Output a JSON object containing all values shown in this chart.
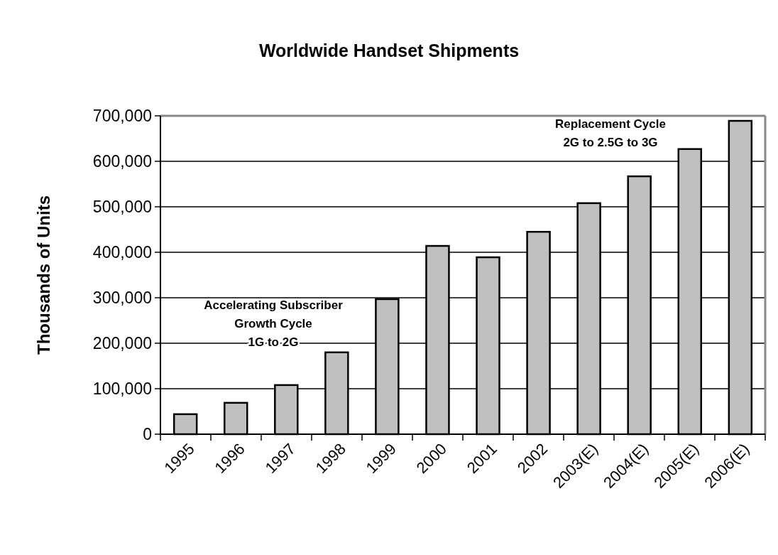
{
  "chart_data": {
    "type": "bar",
    "title": "Worldwide Handset Shipments",
    "ylabel": "Thousands of Units",
    "categories": [
      "1995",
      "1996",
      "1997",
      "1998",
      "1999",
      "2000",
      "2001",
      "2002",
      "2003(E)",
      "2004(E)",
      "2005(E)",
      "2006(E)"
    ],
    "values": [
      44000,
      69000,
      108000,
      180000,
      297000,
      414000,
      389000,
      445000,
      508000,
      567000,
      627000,
      689000
    ],
    "color": "#c0c0c0",
    "ylim": [
      0,
      700000
    ],
    "yticks": [
      {
        "value": 0,
        "label": "0"
      },
      {
        "value": 100000,
        "label": "100,000"
      },
      {
        "value": 200000,
        "label": "200,000"
      },
      {
        "value": 300000,
        "label": "300,000"
      },
      {
        "value": 400000,
        "label": "400,000"
      },
      {
        "value": 500000,
        "label": "500,000"
      },
      {
        "value": 600000,
        "label": "600,000"
      },
      {
        "value": 700000,
        "label": "700,000"
      }
    ],
    "grid": "y",
    "annotations": [
      "Accelerating Subscriber\nGrowth Cycle\n1G to 2G",
      "Replacement Cycle\n2G to 2.5G to 3G"
    ]
  }
}
